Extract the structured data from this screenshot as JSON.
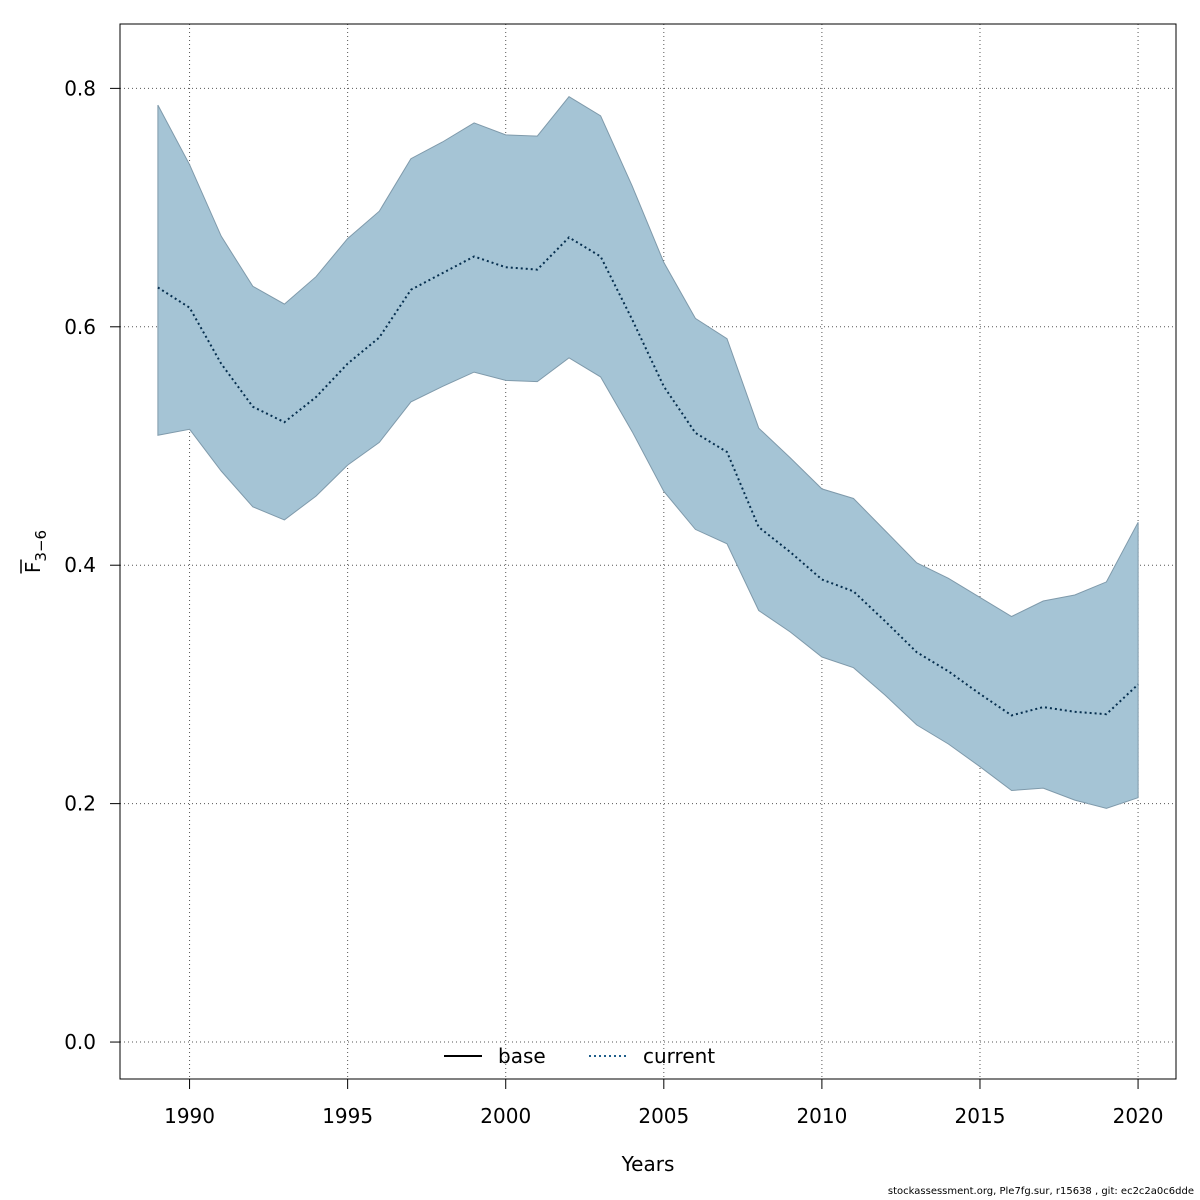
{
  "chart_data": {
    "type": "area",
    "xlabel": "Years",
    "ylabel_main": "F",
    "ylabel_sub": "3−6",
    "xlim": [
      1987.8,
      2021.2
    ],
    "ylim": [
      -0.031,
      0.854
    ],
    "x_ticks": [
      1990,
      1995,
      2000,
      2005,
      2010,
      2015,
      2020
    ],
    "y_ticks": [
      0.0,
      0.2,
      0.4,
      0.6,
      0.8
    ],
    "y_tick_labels": [
      "0.0",
      "0.2",
      "0.4",
      "0.6",
      "0.8"
    ],
    "grid": true,
    "legend_position": "bottom-center",
    "legend": [
      {
        "name": "base",
        "style": "solid",
        "color": "#000000"
      },
      {
        "name": "current",
        "style": "dotted",
        "color": "#1f5f8b"
      }
    ],
    "x": [
      1989,
      1990,
      1991,
      1992,
      1993,
      1994,
      1995,
      1996,
      1997,
      1998,
      1999,
      2000,
      2001,
      2002,
      2003,
      2004,
      2005,
      2006,
      2007,
      2008,
      2009,
      2010,
      2011,
      2012,
      2013,
      2014,
      2015,
      2016,
      2017,
      2018,
      2019,
      2020
    ],
    "band": {
      "name": "confidence interval",
      "color": "#a5c4d5",
      "upper": [
        0.786,
        0.736,
        0.676,
        0.634,
        0.619,
        0.642,
        0.674,
        0.697,
        0.741,
        0.755,
        0.771,
        0.761,
        0.76,
        0.793,
        0.777,
        0.718,
        0.654,
        0.607,
        0.59,
        0.515,
        0.49,
        0.464,
        0.456,
        0.429,
        0.402,
        0.389,
        0.373,
        0.357,
        0.37,
        0.375,
        0.386,
        0.436
      ],
      "lower": [
        0.509,
        0.514,
        0.479,
        0.449,
        0.438,
        0.458,
        0.484,
        0.503,
        0.537,
        0.55,
        0.562,
        0.555,
        0.554,
        0.574,
        0.558,
        0.512,
        0.462,
        0.43,
        0.418,
        0.362,
        0.344,
        0.323,
        0.314,
        0.291,
        0.266,
        0.25,
        0.231,
        0.211,
        0.213,
        0.203,
        0.196,
        0.205
      ]
    },
    "series": [
      {
        "name": "current",
        "style": "dotted",
        "color": "#062f4f",
        "values": [
          0.633,
          0.616,
          0.569,
          0.533,
          0.52,
          0.541,
          0.569,
          0.591,
          0.631,
          0.645,
          0.659,
          0.65,
          0.648,
          0.675,
          0.659,
          0.606,
          0.55,
          0.511,
          0.495,
          0.432,
          0.411,
          0.388,
          0.378,
          0.353,
          0.327,
          0.311,
          0.292,
          0.274,
          0.281,
          0.277,
          0.275,
          0.3
        ]
      }
    ]
  },
  "footer": "stockassessment.org, Ple7fg.sur, r15638 , git: ec2c2a0c6dde"
}
